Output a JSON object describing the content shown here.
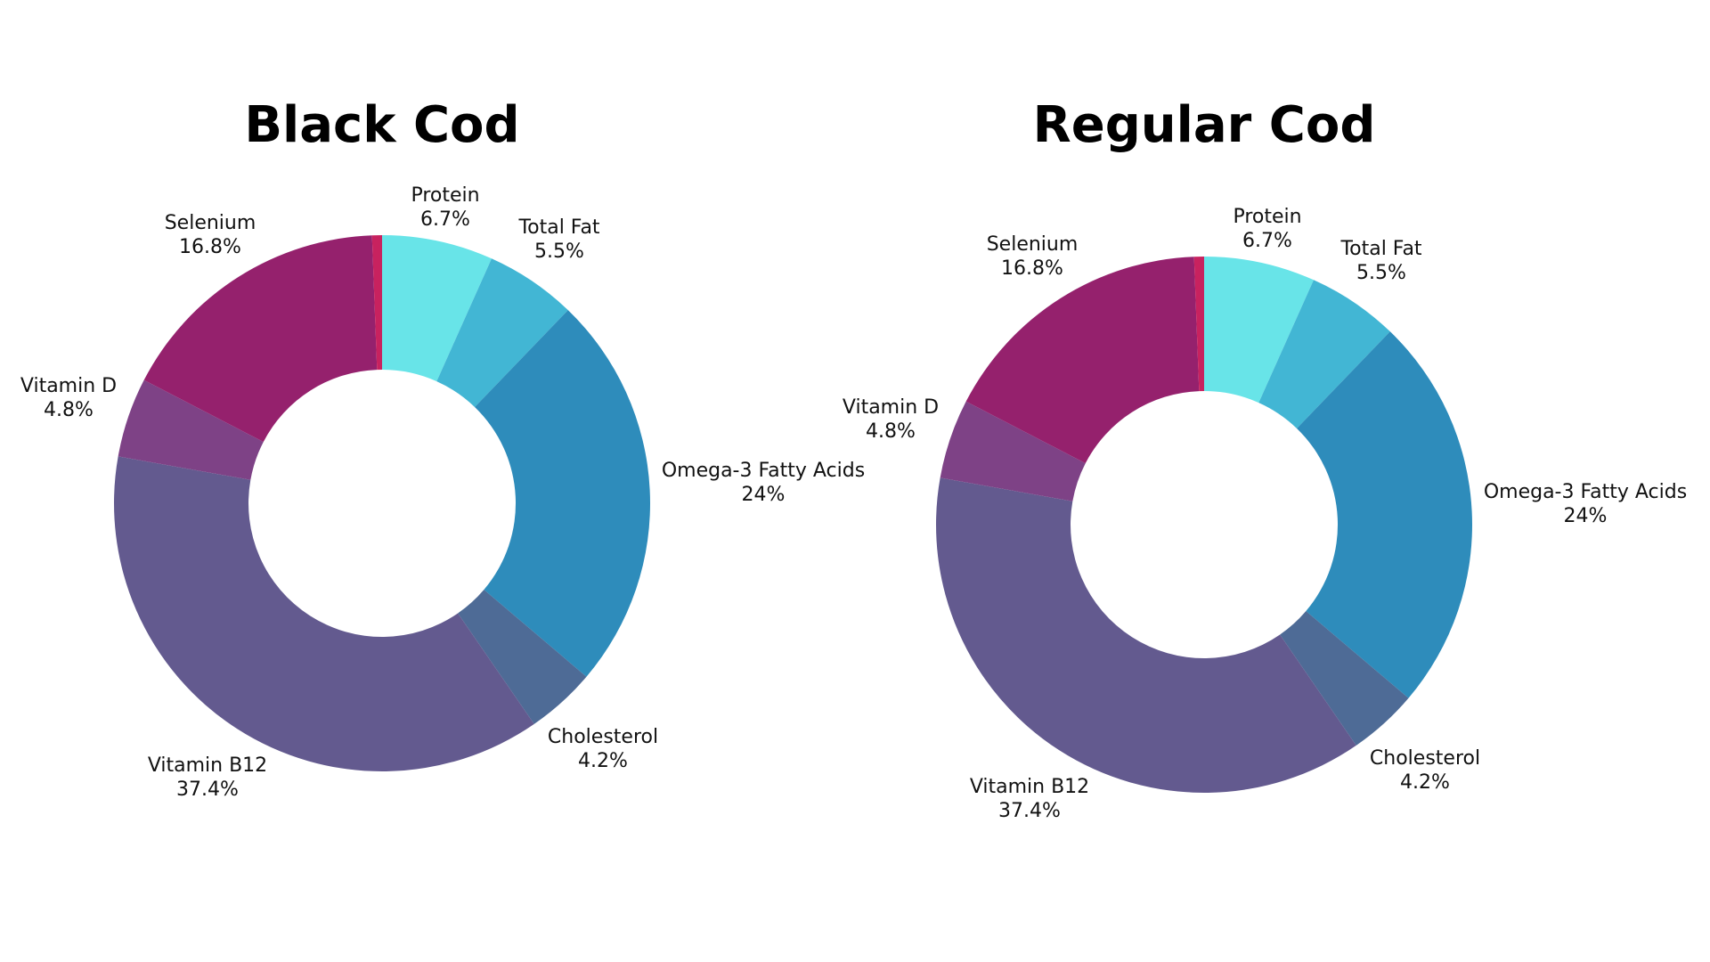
{
  "chart_data": [
    {
      "type": "pie",
      "donut": true,
      "title": "Black Cod",
      "categories": [
        "Protein",
        "Total Fat",
        "Omega-3 Fatty Acids",
        "Cholesterol",
        "Vitamin B12",
        "Vitamin D",
        "Selenium",
        ""
      ],
      "values": [
        6.7,
        5.5,
        24,
        4.2,
        37.4,
        4.8,
        16.8,
        0.6
      ],
      "labels": [
        "6.7%",
        "5.5%",
        "24%",
        "4.2%",
        "37.4%",
        "4.8%",
        "16.8%",
        ""
      ],
      "colors": [
        "#68e4e8",
        "#42b6d4",
        "#2e8cbb",
        "#4e6b96",
        "#635a8f",
        "#7e4286",
        "#95216d",
        "#c8225f"
      ]
    },
    {
      "type": "pie",
      "donut": true,
      "title": "Regular Cod",
      "categories": [
        "Protein",
        "Total Fat",
        "Omega-3 Fatty Acids",
        "Cholesterol",
        "Vitamin B12",
        "Vitamin D",
        "Selenium",
        ""
      ],
      "values": [
        6.7,
        5.5,
        24,
        4.2,
        37.4,
        4.8,
        16.8,
        0.6
      ],
      "labels": [
        "6.7%",
        "5.5%",
        "24%",
        "4.2%",
        "37.4%",
        "4.8%",
        "16.8%",
        ""
      ],
      "colors": [
        "#68e4e8",
        "#42b6d4",
        "#2e8cbb",
        "#4e6b96",
        "#635a8f",
        "#7e4286",
        "#95216d",
        "#c8225f"
      ]
    }
  ]
}
